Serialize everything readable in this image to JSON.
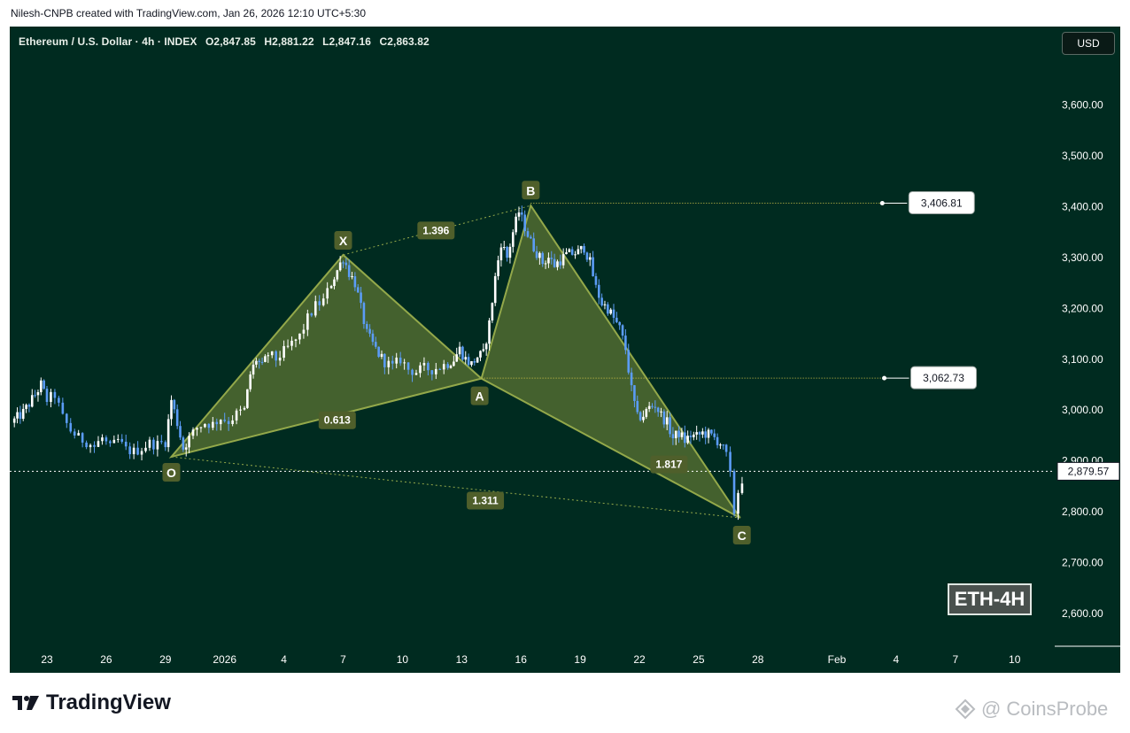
{
  "header": {
    "attribution": "Nilesh-CNPB created with TradingView.com, Jan 26, 2026 12:10 UTC+5:30"
  },
  "legend": {
    "symbol": "Ethereum / U.S. Dollar · 4h · INDEX",
    "open": "O2,847.85",
    "high": "H2,881.22",
    "low": "L2,847.16",
    "close": "C2,863.82"
  },
  "currency_button": "USD",
  "badge": "ETH-4H",
  "footer": {
    "brand": "TradingView",
    "watermark": "CoinsProbe"
  },
  "colors": {
    "background": "#002b20",
    "pattern_fill": "#7c8e3a",
    "pattern_line": "#93a84a",
    "label_bg": "#4f5f2b",
    "up_candle": "#ffffff",
    "down_candle": "#5b9cf6"
  },
  "chart_data": {
    "type": "candlestick-harmonic",
    "title": "Ethereum / U.S. Dollar · 4h · INDEX",
    "ylim": [
      2520,
      3720
    ],
    "y_ticks": [
      2600,
      2700,
      2800,
      2900,
      3000,
      3100,
      3200,
      3300,
      3400,
      3500,
      3600
    ],
    "y_tick_labels": [
      "2,600.00",
      "2,700.00",
      "2,800.00",
      "2,900.00",
      "3,000.00",
      "3,100.00",
      "3,200.00",
      "3,300.00",
      "3,400.00",
      "3,500.00",
      "3,600.00"
    ],
    "x_ticks": [
      {
        "label": "23",
        "day": 0
      },
      {
        "label": "26",
        "day": 3
      },
      {
        "label": "29",
        "day": 6
      },
      {
        "label": "2026",
        "day": 9
      },
      {
        "label": "4",
        "day": 12
      },
      {
        "label": "7",
        "day": 15
      },
      {
        "label": "10",
        "day": 18
      },
      {
        "label": "13",
        "day": 21
      },
      {
        "label": "16",
        "day": 24
      },
      {
        "label": "19",
        "day": 27
      },
      {
        "label": "22",
        "day": 30
      },
      {
        "label": "25",
        "day": 33
      },
      {
        "label": "28",
        "day": 36
      },
      {
        "label": "Feb",
        "day": 40
      },
      {
        "label": "4",
        "day": 43
      },
      {
        "label": "7",
        "day": 46
      },
      {
        "label": "10",
        "day": 49
      }
    ],
    "price_path": [
      [
        -1.8,
        2975
      ],
      [
        -1.2,
        2995
      ],
      [
        -0.6,
        3030
      ],
      [
        -0.3,
        3050
      ],
      [
        0,
        3020
      ],
      [
        0.4,
        3030
      ],
      [
        0.8,
        2985
      ],
      [
        1.2,
        2960
      ],
      [
        1.6,
        2945
      ],
      [
        2.0,
        2938
      ],
      [
        2.4,
        2928
      ],
      [
        2.8,
        2945
      ],
      [
        3.2,
        2925
      ],
      [
        3.6,
        2940
      ],
      [
        4.0,
        2922
      ],
      [
        4.4,
        2918
      ],
      [
        4.8,
        2925
      ],
      [
        5.2,
        2935
      ],
      [
        5.6,
        2932
      ],
      [
        6.0,
        2938
      ],
      [
        6.3,
        3020
      ],
      [
        6.6,
        2975
      ],
      [
        6.9,
        2925
      ],
      [
        7.2,
        2945
      ],
      [
        7.6,
        2965
      ],
      [
        8.0,
        2975
      ],
      [
        8.4,
        2972
      ],
      [
        8.8,
        2985
      ],
      [
        9.2,
        2978
      ],
      [
        9.6,
        2992
      ],
      [
        10.0,
        3000
      ],
      [
        10.3,
        3070
      ],
      [
        10.6,
        3100
      ],
      [
        10.9,
        3085
      ],
      [
        11.2,
        3110
      ],
      [
        11.6,
        3100
      ],
      [
        12.0,
        3115
      ],
      [
        12.4,
        3130
      ],
      [
        12.8,
        3145
      ],
      [
        13.2,
        3180
      ],
      [
        13.6,
        3205
      ],
      [
        14.0,
        3215
      ],
      [
        14.4,
        3250
      ],
      [
        14.7,
        3275
      ],
      [
        15.0,
        3300
      ],
      [
        15.3,
        3270
      ],
      [
        15.6,
        3250
      ],
      [
        15.9,
        3200
      ],
      [
        16.2,
        3150
      ],
      [
        16.5,
        3130
      ],
      [
        16.8,
        3110
      ],
      [
        17.1,
        3095
      ],
      [
        17.5,
        3085
      ],
      [
        17.9,
        3100
      ],
      [
        18.3,
        3080
      ],
      [
        18.7,
        3075
      ],
      [
        19.1,
        3082
      ],
      [
        19.5,
        3080
      ],
      [
        19.9,
        3085
      ],
      [
        20.3,
        3092
      ],
      [
        20.6,
        3100
      ],
      [
        20.9,
        3120
      ],
      [
        21.2,
        3100
      ],
      [
        21.5,
        3090
      ],
      [
        21.8,
        3105
      ],
      [
        22.1,
        3110
      ],
      [
        22.4,
        3170
      ],
      [
        22.7,
        3260
      ],
      [
        23.0,
        3330
      ],
      [
        23.3,
        3300
      ],
      [
        23.6,
        3350
      ],
      [
        23.9,
        3390
      ],
      [
        24.2,
        3360
      ],
      [
        24.5,
        3330
      ],
      [
        24.8,
        3310
      ],
      [
        25.1,
        3290
      ],
      [
        25.4,
        3300
      ],
      [
        25.7,
        3285
      ],
      [
        26.0,
        3295
      ],
      [
        26.3,
        3305
      ],
      [
        26.6,
        3308
      ],
      [
        26.9,
        3310
      ],
      [
        27.2,
        3320
      ],
      [
        27.5,
        3290
      ],
      [
        27.8,
        3240
      ],
      [
        28.1,
        3210
      ],
      [
        28.4,
        3200
      ],
      [
        28.7,
        3180
      ],
      [
        29.0,
        3160
      ],
      [
        29.3,
        3120
      ],
      [
        29.6,
        3040
      ],
      [
        29.9,
        2985
      ],
      [
        30.2,
        2990
      ],
      [
        30.5,
        3005
      ],
      [
        30.8,
        3010
      ],
      [
        31.1,
        2990
      ],
      [
        31.4,
        2975
      ],
      [
        31.7,
        2945
      ],
      [
        32.0,
        2955
      ],
      [
        32.3,
        2940
      ],
      [
        32.6,
        2950
      ],
      [
        32.9,
        2948
      ],
      [
        33.2,
        2955
      ],
      [
        33.5,
        2952
      ],
      [
        33.8,
        2945
      ],
      [
        34.1,
        2935
      ],
      [
        34.4,
        2910
      ],
      [
        34.6,
        2870
      ],
      [
        34.8,
        2800
      ],
      [
        35.0,
        2840
      ],
      [
        35.2,
        2864
      ]
    ],
    "pattern": {
      "points": [
        {
          "label": "O",
          "day": 6.3,
          "price": 2908
        },
        {
          "label": "X",
          "day": 15.0,
          "price": 3305
        },
        {
          "label": "A",
          "day": 22.0,
          "price": 3062
        },
        {
          "label": "B",
          "day": 24.5,
          "price": 3402
        },
        {
          "label": "C",
          "day": 35.1,
          "price": 2788
        }
      ],
      "ratios": [
        {
          "label": "0.613",
          "day": 14.7,
          "price": 2980
        },
        {
          "label": "1.396",
          "day": 19.7,
          "price": 3353
        },
        {
          "label": "1.817",
          "day": 31.5,
          "price": 2893
        },
        {
          "label": "1.311",
          "day": 22.2,
          "price": 2822
        }
      ]
    },
    "levels": [
      {
        "label": "3,406.81",
        "price": 3406.81,
        "from_day": 24.5,
        "to_day": 42.3
      },
      {
        "label": "3,062.73",
        "price": 3062.73,
        "from_day": 22.0,
        "to_day": 42.4
      }
    ],
    "current_price": {
      "label": "2,879.57",
      "price": 2879.57
    }
  }
}
